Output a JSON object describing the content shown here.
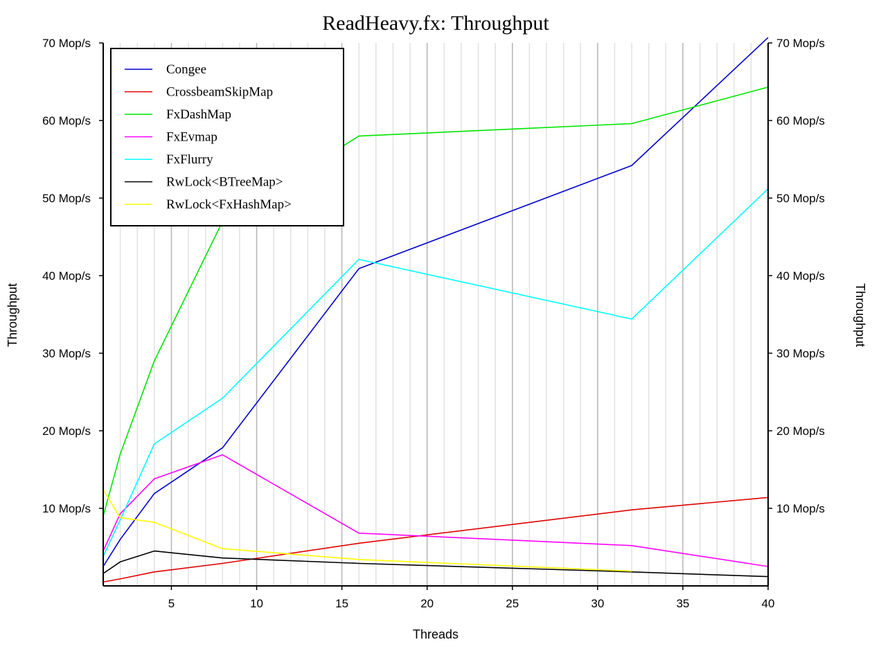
{
  "chart_data": {
    "type": "line",
    "title": "ReadHeavy.fx: Throughput",
    "xlabel": "Threads",
    "ylabel": "Throughput",
    "ylabel_right": "Throughput",
    "xlim": [
      1,
      40
    ],
    "ylim": [
      0,
      70
    ],
    "x_ticks": [
      5,
      10,
      15,
      20,
      25,
      30,
      35,
      40
    ],
    "x_tick_labels": [
      "5",
      "10",
      "15",
      "20",
      "25",
      "30",
      "35",
      "40"
    ],
    "y_ticks": [
      10,
      20,
      30,
      40,
      50,
      60,
      70
    ],
    "y_tick_labels": [
      "10 Mop/s",
      "20 Mop/s",
      "30 Mop/s",
      "40 Mop/s",
      "50 Mop/s",
      "60 Mop/s",
      "70 Mop/s"
    ],
    "grid": true,
    "legend_position": "top-left",
    "x": [
      1,
      2,
      4,
      8,
      16,
      32,
      40
    ],
    "series": [
      {
        "name": "Congee",
        "color": "#0000cc",
        "values": [
          2.5,
          6.0,
          11.9,
          17.8,
          40.9,
          54.2,
          70.7
        ]
      },
      {
        "name": "CrossbeamSkipMap",
        "color": "#e00000",
        "values": [
          0.5,
          0.9,
          1.8,
          2.9,
          5.5,
          9.8,
          11.4
        ]
      },
      {
        "name": "FxDashMap",
        "color": "#00e600",
        "values": [
          9.0,
          17.0,
          29.0,
          47.0,
          58.0,
          59.6,
          64.3
        ]
      },
      {
        "name": "FxEvmap",
        "color": "#ff00ff",
        "values": [
          4.5,
          9.3,
          13.8,
          16.9,
          6.8,
          5.2,
          2.5
        ]
      },
      {
        "name": "FxFlurry",
        "color": "#00ffff",
        "values": [
          3.8,
          8.5,
          18.3,
          24.2,
          42.1,
          34.4,
          51.2
        ]
      },
      {
        "name": "RwLock<BTreeMap>",
        "color": "#000000",
        "values": [
          1.6,
          3.1,
          4.5,
          3.6,
          2.9,
          1.8,
          1.2
        ]
      },
      {
        "name": "RwLock<FxHashMap>",
        "color": "#ffff00",
        "values": [
          12.4,
          8.8,
          8.2,
          4.8,
          3.4,
          1.9,
          null
        ]
      }
    ]
  }
}
